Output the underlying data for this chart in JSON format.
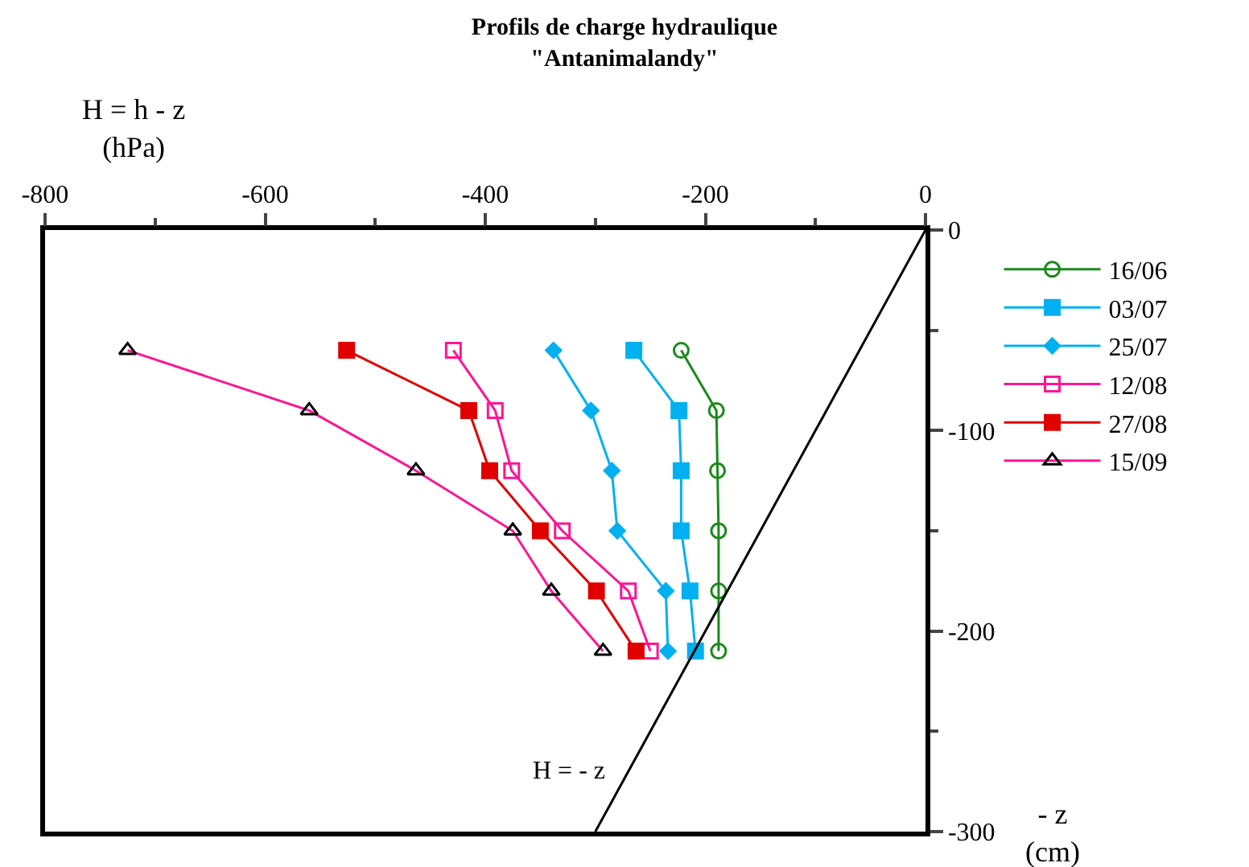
{
  "chart_data": {
    "type": "line",
    "title": "Profils de charge hydraulique\n\"Antanimalandy\"",
    "xlabel": "H = h - z\n(hPa)",
    "ylabel": "- z\n(cm)",
    "xlim": [
      -800,
      0
    ],
    "xticks": [
      -800,
      {
        "value": -700,
        "label": null
      },
      -600,
      {
        "value": -500,
        "label": null
      },
      -400,
      {
        "value": -300,
        "label": null
      },
      -200,
      {
        "value": -100,
        "label": null
      },
      0
    ],
    "ylim": [
      -300,
      0
    ],
    "yticks": [
      -300,
      {
        "value": -250,
        "label": null
      },
      -200,
      {
        "value": -150,
        "label": null
      },
      -100,
      {
        "value": -50,
        "label": null
      },
      0
    ],
    "legend": "top right",
    "series": [
      {
        "name": "16/06",
        "color": "#1a8a1a",
        "marker": "circle-open",
        "x": [
          -222,
          -190,
          -189,
          -188,
          -188,
          -188
        ],
        "values": [
          -60,
          -90,
          -120,
          -150,
          -180,
          -210
        ]
      },
      {
        "name": "03/07",
        "color": "#00b0f0",
        "marker": "square",
        "x": [
          -265,
          -224,
          -222,
          -222,
          -214,
          -209
        ],
        "values": [
          -60,
          -90,
          -120,
          -150,
          -180,
          -210
        ]
      },
      {
        "name": "25/07",
        "color": "#00b0f0",
        "marker": "diamond",
        "x": [
          -338,
          -304,
          -285,
          -280,
          -236,
          -234
        ],
        "values": [
          -60,
          -90,
          -120,
          -150,
          -180,
          -210
        ]
      },
      {
        "name": "12/08",
        "color": "#ff1493",
        "marker": "square-open",
        "x": [
          -429,
          -391,
          -376,
          -330,
          -270,
          -250
        ],
        "values": [
          -60,
          -90,
          -120,
          -150,
          -180,
          -210
        ]
      },
      {
        "name": "27/08",
        "color": "#e00000",
        "marker": "square",
        "x": [
          -526,
          -415,
          -396,
          -350,
          -299,
          -263
        ],
        "values": [
          -60,
          -90,
          -120,
          -150,
          -180,
          -210
        ]
      },
      {
        "name": "15/09",
        "color": "#ff1493",
        "marker": "triangle-open",
        "colors": [
          "#000000",
          "#000000",
          "#000000",
          "#000000",
          "#000000",
          "#000000"
        ],
        "x": [
          -725,
          -560,
          -463,
          -375,
          -340,
          -293
        ],
        "values": [
          -60,
          -90,
          -120,
          -150,
          -180,
          -210
        ]
      },
      {
        "color": "#000000",
        "marker": "none",
        "x": [
          0,
          -300
        ],
        "values": [
          0,
          -300
        ]
      }
    ],
    "annotations": [
      {
        "text": "H = - z",
        "x": -270,
        "y": -270
      }
    ]
  }
}
